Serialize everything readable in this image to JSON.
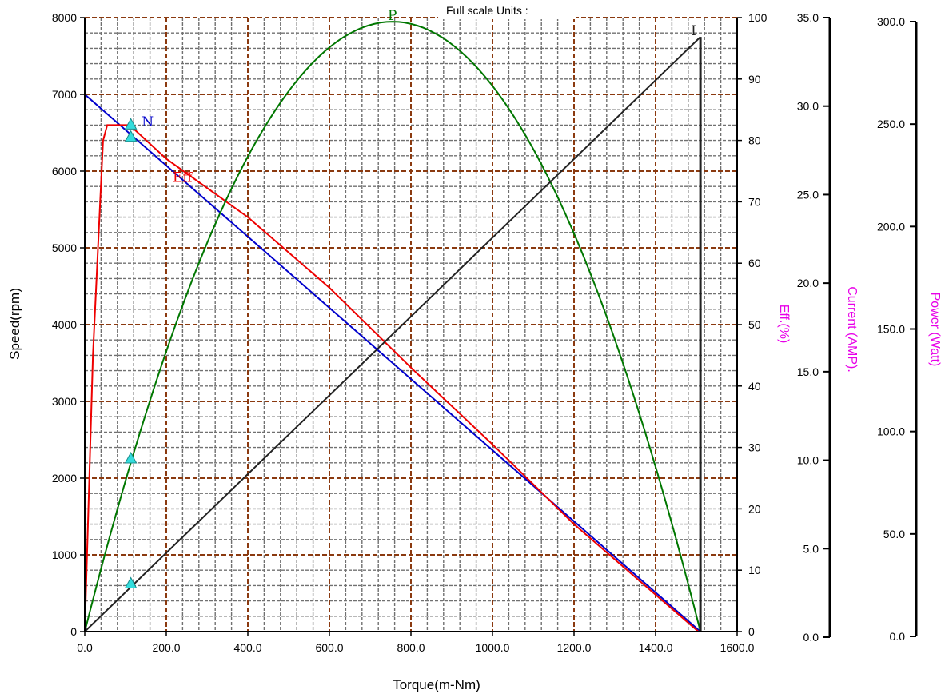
{
  "chart_data": {
    "type": "line",
    "header": "Full scale Units :",
    "x": {
      "label": "Torque(m-Nm)",
      "lim": [
        0,
        1600
      ],
      "ticks": [
        "0.0",
        "200.0",
        "400.0",
        "600.0",
        "800.0",
        "1000.0",
        "1200.0",
        "1400.0",
        "1600.0"
      ]
    },
    "y_left": {
      "label": "Speed(rpm)",
      "lim": [
        0,
        8000
      ],
      "ticks": [
        "0",
        "1000",
        "2000",
        "3000",
        "4000",
        "5000",
        "6000",
        "7000",
        "8000"
      ]
    },
    "y_eff": {
      "label": "Eff.(%)",
      "lim": [
        0,
        100
      ],
      "ticks": [
        "0",
        "10",
        "20",
        "30",
        "40",
        "50",
        "60",
        "70",
        "80",
        "90",
        "100"
      ]
    },
    "y_current": {
      "label": "Current (AMP).",
      "lim": [
        0,
        35
      ],
      "ticks": [
        "0.0",
        "5.0",
        "10.0",
        "15.0",
        "20.0",
        "25.0",
        "30.0",
        "35.0"
      ]
    },
    "y_power": {
      "label": "Power (Watt)",
      "lim": [
        0,
        300
      ],
      "ticks": [
        "0.0",
        "50.0",
        "100.0",
        "150.0",
        "200.0",
        "250.0",
        "300.0"
      ]
    },
    "grid": true,
    "series": [
      {
        "name": "N",
        "axis": "speed",
        "color": "#0000cc",
        "x": [
          0,
          1510
        ],
        "y": [
          7000,
          0
        ]
      },
      {
        "name": "Eff",
        "axis": "eff",
        "color": "#ee0000",
        "x": [
          0,
          20,
          45,
          55,
          110,
          200,
          400,
          600,
          800,
          1000,
          1200,
          1400,
          1505
        ],
        "y": [
          0,
          45,
          80,
          82.5,
          82.5,
          77,
          67.5,
          56,
          43,
          30.5,
          17.5,
          6,
          0
        ]
      },
      {
        "name": "P",
        "axis": "power",
        "color": "#007700",
        "x": [
          0,
          1510
        ],
        "peak_x": 755,
        "peak_y": 298
      },
      {
        "name": "I",
        "axis": "current",
        "color": "#222222",
        "x": [
          0,
          1510
        ],
        "y": [
          0,
          33.9
        ]
      }
    ],
    "markers": [
      {
        "x": 113,
        "axis": "speed",
        "y": 6600
      },
      {
        "x": 113,
        "axis": "eff",
        "y": 80.5
      },
      {
        "x": 113,
        "axis": "speed",
        "y": 2250
      },
      {
        "x": 113,
        "axis": "speed",
        "y": 620
      }
    ],
    "marker_color": "#33dddd"
  }
}
